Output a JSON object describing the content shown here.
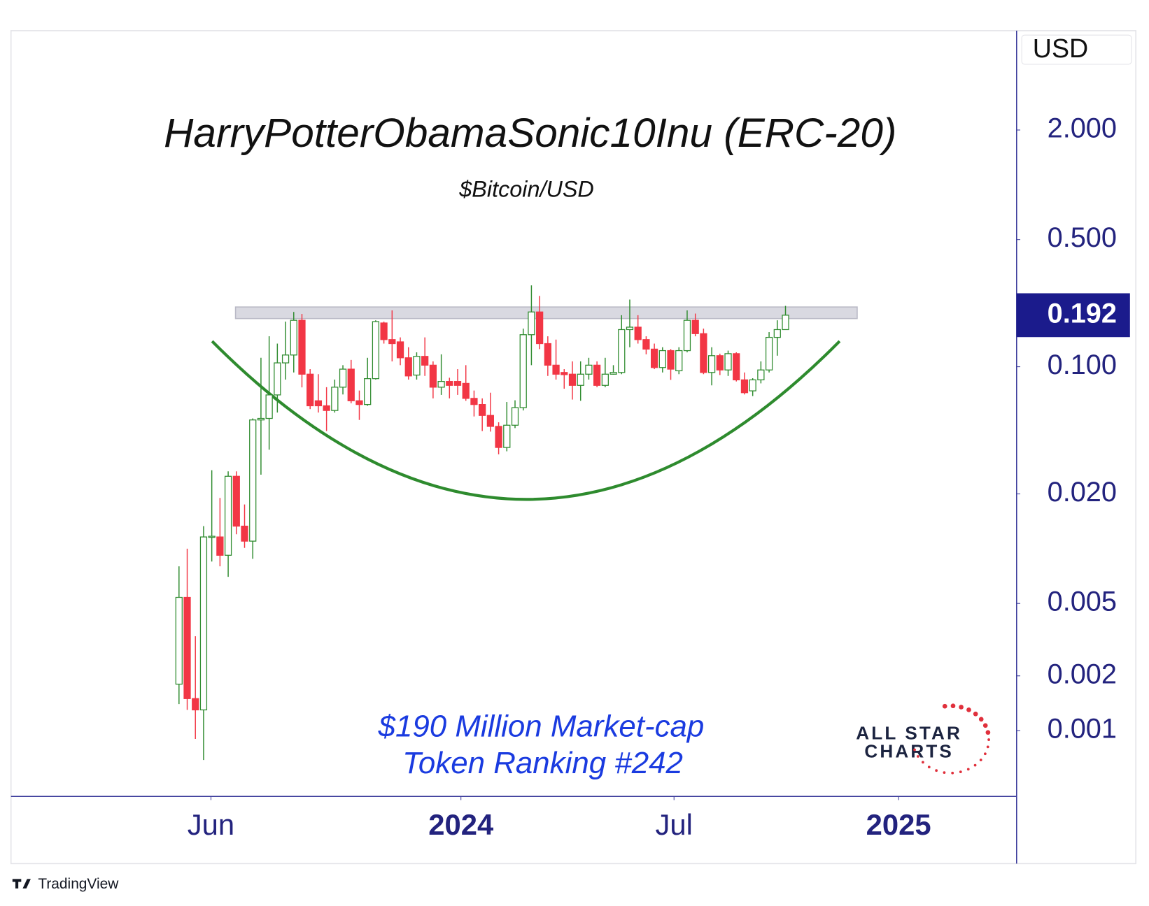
{
  "chart_data": {
    "type": "candlestick",
    "title": "HarryPotterObamaSonic10Inu (ERC-20)",
    "subtitle": "$Bitcoin/USD",
    "currency": "USD",
    "annotations": [
      "$190 Million Market-cap",
      "Token Ranking #242"
    ],
    "logo": [
      "ALL STAR",
      "CHARTS"
    ],
    "log_scale": true,
    "grid": false,
    "up_color": "#2e8b2e",
    "down_color": "#f23645",
    "curve_color": "#2e8b2e",
    "band_color": "#d9d9e1",
    "resistance_band": [
      0.184,
      0.213
    ],
    "open": [
      0.0018,
      0.0054,
      0.0015,
      0.0013,
      0.0116,
      0.0116,
      0.0092,
      0.025,
      0.0133,
      0.011,
      0.051,
      0.052,
      0.07,
      0.105,
      0.116,
      0.18,
      0.091,
      0.065,
      0.061,
      0.0575,
      0.0772,
      0.097,
      0.065,
      0.062,
      0.086,
      0.174,
      0.141,
      0.137,
      0.112,
      0.09,
      0.114,
      0.102,
      0.0772,
      0.083,
      0.083,
      0.081,
      0.067,
      0.062,
      0.054,
      0.047,
      0.036,
      0.0477,
      0.0596,
      0.15,
      0.2,
      0.134,
      0.102,
      0.093,
      0.091,
      0.079,
      0.091,
      0.102,
      0.079,
      0.091,
      0.093,
      0.16,
      0.165,
      0.141,
      0.125,
      0.099,
      0.1226,
      0.095,
      0.1226,
      0.18,
      0.152,
      0.093,
      0.115,
      0.096,
      0.118,
      0.0847,
      0.0737,
      0.0847,
      0.096,
      0.145,
      0.16
    ],
    "high": [
      0.008,
      0.01,
      0.0033,
      0.0133,
      0.027,
      0.019,
      0.0266,
      0.0266,
      0.0175,
      0.052,
      0.112,
      0.147,
      0.134,
      0.177,
      0.2,
      0.195,
      0.097,
      0.091,
      0.0772,
      0.085,
      0.102,
      0.109,
      0.074,
      0.112,
      0.18,
      0.177,
      0.204,
      0.145,
      0.128,
      0.12,
      0.145,
      0.107,
      0.117,
      0.087,
      0.097,
      0.102,
      0.074,
      0.067,
      0.072,
      0.0495,
      0.064,
      0.0654,
      0.162,
      0.28,
      0.245,
      0.147,
      0.141,
      0.097,
      0.107,
      0.107,
      0.112,
      0.107,
      0.112,
      0.102,
      0.192,
      0.234,
      0.192,
      0.147,
      0.134,
      0.128,
      0.125,
      0.128,
      0.204,
      0.196,
      0.162,
      0.128,
      0.118,
      0.1226,
      0.12,
      0.093,
      0.0865,
      0.107,
      0.155,
      0.18,
      0.216
    ],
    "low": [
      0.0014,
      0.0013,
      0.0009,
      0.00069,
      0.0085,
      0.008,
      0.007,
      0.012,
      0.0101,
      0.0088,
      0.0255,
      0.035,
      0.056,
      0.085,
      0.093,
      0.077,
      0.0585,
      0.056,
      0.0443,
      0.056,
      0.0704,
      0.063,
      0.051,
      0.061,
      0.085,
      0.134,
      0.107,
      0.102,
      0.085,
      0.085,
      0.089,
      0.067,
      0.07,
      0.067,
      0.07,
      0.065,
      0.0533,
      0.0443,
      0.044,
      0.033,
      0.0343,
      0.046,
      0.0575,
      0.102,
      0.125,
      0.089,
      0.085,
      0.0757,
      0.066,
      0.065,
      0.085,
      0.0772,
      0.0772,
      0.0905,
      0.091,
      0.128,
      0.134,
      0.117,
      0.097,
      0.093,
      0.0847,
      0.091,
      0.12,
      0.147,
      0.091,
      0.079,
      0.09,
      0.089,
      0.083,
      0.0704,
      0.069,
      0.081,
      0.093,
      0.115,
      0.162
    ],
    "close": [
      0.0054,
      0.0015,
      0.0013,
      0.0116,
      0.0117,
      0.0092,
      0.025,
      0.0133,
      0.011,
      0.051,
      0.052,
      0.07,
      0.105,
      0.116,
      0.18,
      0.091,
      0.061,
      0.061,
      0.0575,
      0.0772,
      0.097,
      0.065,
      0.062,
      0.086,
      0.177,
      0.141,
      0.134,
      0.112,
      0.089,
      0.114,
      0.102,
      0.0772,
      0.083,
      0.079,
      0.079,
      0.067,
      0.062,
      0.054,
      0.047,
      0.036,
      0.0477,
      0.0596,
      0.15,
      0.2,
      0.134,
      0.102,
      0.091,
      0.0905,
      0.079,
      0.091,
      0.102,
      0.079,
      0.091,
      0.093,
      0.16,
      0.165,
      0.141,
      0.125,
      0.099,
      0.1226,
      0.097,
      0.1226,
      0.18,
      0.152,
      0.093,
      0.115,
      0.096,
      0.118,
      0.0847,
      0.072,
      0.0847,
      0.096,
      0.145,
      0.16,
      0.192
    ],
    "xlim": [
      -20.5,
      102.2
    ],
    "xticks": [
      {
        "value": 3.9,
        "label": "Jun"
      },
      {
        "value": 34.4,
        "label": "2024"
      },
      {
        "value": 60.4,
        "label": "Jul"
      },
      {
        "value": 87.8,
        "label": "2025"
      }
    ],
    "ylim": [
      0.000435,
      7.03
    ],
    "yticks": [
      {
        "value": 2,
        "label": "2.000"
      },
      {
        "value": 0.5,
        "label": "0.500"
      },
      {
        "value": 0.1,
        "label": "0.100"
      },
      {
        "value": 0.02,
        "label": "0.020"
      },
      {
        "value": 0.005,
        "label": "0.005"
      },
      {
        "value": 0.002,
        "label": "0.002"
      },
      {
        "value": 0.001,
        "label": "0.001"
      }
    ]
  },
  "footer": {
    "brand": "TradingView"
  }
}
